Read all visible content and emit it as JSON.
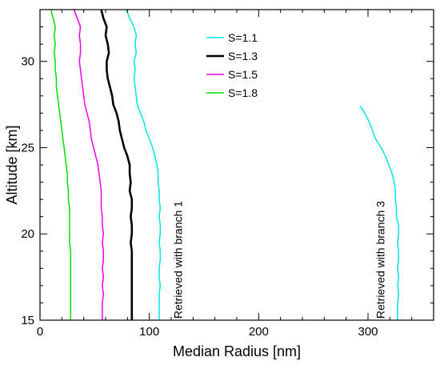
{
  "chart_data": {
    "type": "line",
    "title": "",
    "xlabel": "Median Radius [nm]",
    "ylabel": "Altitude [km]",
    "xlim": [
      0,
      360
    ],
    "ylim": [
      15,
      33
    ],
    "xticks": [
      0,
      100,
      200,
      300
    ],
    "yticks": [
      15,
      20,
      25,
      30
    ],
    "grid": false,
    "legend_placement": "top-center",
    "series": [
      {
        "name": "S=1.1",
        "color": "#00e5ee",
        "segments": [
          [
            [
              79,
              33
            ],
            [
              82,
              32.5
            ],
            [
              86,
              32
            ],
            [
              88,
              31.5
            ],
            [
              87,
              31
            ],
            [
              88,
              30.5
            ],
            [
              86,
              30
            ],
            [
              87,
              29.5
            ],
            [
              86,
              29
            ],
            [
              87,
              28.5
            ],
            [
              88,
              28
            ],
            [
              89,
              27.5
            ],
            [
              92,
              27
            ],
            [
              95,
              26.5
            ],
            [
              97,
              26
            ],
            [
              100,
              25.5
            ],
            [
              103,
              25
            ],
            [
              105,
              24.5
            ],
            [
              107,
              24
            ],
            [
              108,
              23.5
            ],
            [
              108,
              23
            ],
            [
              109,
              22.5
            ],
            [
              109,
              22
            ],
            [
              110,
              21.5
            ],
            [
              109,
              21
            ],
            [
              110,
              20.5
            ],
            [
              110,
              20
            ],
            [
              109,
              19.5
            ],
            [
              110,
              19
            ],
            [
              110,
              18.5
            ],
            [
              109,
              18
            ],
            [
              109,
              17.5
            ],
            [
              110,
              17
            ],
            [
              109,
              16.5
            ],
            [
              109,
              16
            ],
            [
              109,
              15.5
            ],
            [
              109,
              15
            ]
          ],
          [
            [
              293,
              27.4
            ],
            [
              297,
              27
            ],
            [
              301,
              26.5
            ],
            [
              304,
              26
            ],
            [
              307,
              25.5
            ],
            [
              312,
              25
            ],
            [
              316,
              24.5
            ],
            [
              319,
              24
            ],
            [
              322,
              23.5
            ],
            [
              324,
              23
            ],
            [
              325,
              22.5
            ],
            [
              325,
              22
            ],
            [
              326,
              21.5
            ],
            [
              326,
              21
            ],
            [
              328,
              20.5
            ],
            [
              328,
              20
            ],
            [
              327,
              19.5
            ],
            [
              328,
              19
            ],
            [
              328,
              18.5
            ],
            [
              327,
              18
            ],
            [
              328,
              17.5
            ],
            [
              327,
              17
            ],
            [
              328,
              16.5
            ],
            [
              327,
              16
            ],
            [
              327,
              15.5
            ],
            [
              327,
              15
            ]
          ]
        ]
      },
      {
        "name": "S=1.3",
        "color": "#000000",
        "segments": [
          [
            [
              56,
              33
            ],
            [
              58,
              32.5
            ],
            [
              61,
              32
            ],
            [
              60,
              31.5
            ],
            [
              62,
              31
            ],
            [
              63,
              30.5
            ],
            [
              61,
              30
            ],
            [
              61,
              29.5
            ],
            [
              62,
              29
            ],
            [
              64,
              28.5
            ],
            [
              66,
              28
            ],
            [
              67,
              27.5
            ],
            [
              70,
              27
            ],
            [
              72,
              26.5
            ],
            [
              73,
              26
            ],
            [
              75,
              25.5
            ],
            [
              77,
              25
            ],
            [
              80,
              24.5
            ],
            [
              82,
              24
            ],
            [
              82,
              23.5
            ],
            [
              83,
              23
            ],
            [
              82,
              22.5
            ],
            [
              84,
              22
            ],
            [
              84,
              21.5
            ],
            [
              83,
              21
            ],
            [
              84,
              20.5
            ],
            [
              84,
              20
            ],
            [
              83,
              19.5
            ],
            [
              84,
              19
            ],
            [
              84,
              18.5
            ],
            [
              84,
              18
            ],
            [
              84,
              17.5
            ],
            [
              84,
              17
            ],
            [
              84,
              16.5
            ],
            [
              84,
              16
            ],
            [
              84,
              15.5
            ],
            [
              84,
              15
            ]
          ]
        ]
      },
      {
        "name": "S=1.5",
        "color": "#ee00ee",
        "segments": [
          [
            [
              31,
              33
            ],
            [
              34,
              32.5
            ],
            [
              37,
              32
            ],
            [
              36,
              31.5
            ],
            [
              37,
              31
            ],
            [
              37,
              30.5
            ],
            [
              36,
              30
            ],
            [
              37,
              29.5
            ],
            [
              38,
              29
            ],
            [
              39,
              28.5
            ],
            [
              40,
              28
            ],
            [
              41,
              27.5
            ],
            [
              43,
              27
            ],
            [
              45,
              26.5
            ],
            [
              46,
              26
            ],
            [
              47,
              25.5
            ],
            [
              49,
              25
            ],
            [
              51,
              24.5
            ],
            [
              53,
              24
            ],
            [
              54,
              23.5
            ],
            [
              55,
              23
            ],
            [
              56,
              22.5
            ],
            [
              56,
              22
            ],
            [
              56,
              21.5
            ],
            [
              57,
              21
            ],
            [
              57,
              20.5
            ],
            [
              58,
              20
            ],
            [
              57,
              19.5
            ],
            [
              58,
              19
            ],
            [
              58,
              18.5
            ],
            [
              57,
              18
            ],
            [
              58,
              17.5
            ],
            [
              57,
              17
            ],
            [
              58,
              16.5
            ],
            [
              57,
              16
            ],
            [
              57,
              15.5
            ],
            [
              57,
              15
            ]
          ]
        ]
      },
      {
        "name": "S=1.8",
        "color": "#00dd00",
        "segments": [
          [
            [
              10,
              33
            ],
            [
              12,
              32.5
            ],
            [
              14,
              32
            ],
            [
              13,
              31.5
            ],
            [
              14,
              31
            ],
            [
              13,
              30.5
            ],
            [
              14,
              30
            ],
            [
              14,
              29.5
            ],
            [
              15,
              29
            ],
            [
              15,
              28.5
            ],
            [
              16,
              28
            ],
            [
              17,
              27.5
            ],
            [
              18,
              27
            ],
            [
              19,
              26.5
            ],
            [
              20,
              26
            ],
            [
              21,
              25.5
            ],
            [
              22,
              25
            ],
            [
              23,
              24.5
            ],
            [
              24,
              24
            ],
            [
              25,
              23.5
            ],
            [
              25,
              23
            ],
            [
              26,
              22.5
            ],
            [
              26,
              22
            ],
            [
              27,
              21.5
            ],
            [
              27,
              21
            ],
            [
              27,
              20.5
            ],
            [
              27,
              20
            ],
            [
              27,
              19.5
            ],
            [
              28,
              19
            ],
            [
              28,
              18.5
            ],
            [
              28,
              18
            ],
            [
              28,
              17.5
            ],
            [
              28,
              17
            ],
            [
              28,
              16.5
            ],
            [
              28,
              16
            ],
            [
              28,
              15.5
            ],
            [
              28,
              15
            ]
          ]
        ]
      }
    ],
    "annotations": [
      {
        "text": "Retrieved with branch 1",
        "x": 130,
        "y": 18.5
      },
      {
        "text": "Retrieved with branch 3",
        "x": 315,
        "y": 18.5
      }
    ]
  }
}
